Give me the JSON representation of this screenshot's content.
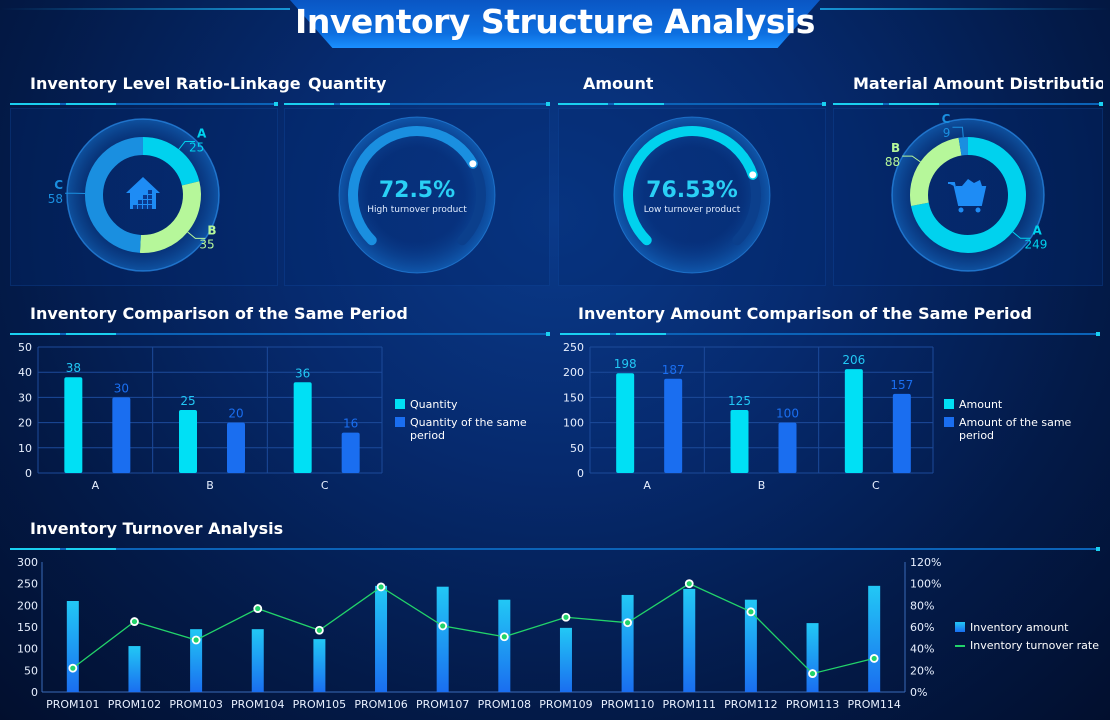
{
  "header": {
    "title": "Inventory Structure Analysis"
  },
  "sections": {
    "level_ratio": {
      "title": "Inventory Level Ratio-Linkage",
      "icon": "warehouse-icon",
      "slices": [
        {
          "label": "A",
          "value": 25,
          "color": "#00d2ee"
        },
        {
          "label": "B",
          "value": 35,
          "color": "#b6f79a"
        },
        {
          "label": "C",
          "value": 58,
          "color": "#1a8fe0"
        }
      ]
    },
    "quantity": {
      "title": "Quantity",
      "percent": 72.5,
      "percent_label": "72.5%",
      "caption": "High turnover product",
      "color": "#1a8fe0"
    },
    "amount": {
      "title": "Amount",
      "percent": 76.53,
      "percent_label": "76.53%",
      "caption": "Low turnover product",
      "color": "#00d2ee"
    },
    "material": {
      "title": "Material Amount Distribution-I",
      "icon": "shopping-cart-icon",
      "slices": [
        {
          "label": "A",
          "value": 249,
          "color": "#00d2ee"
        },
        {
          "label": "B",
          "value": 88,
          "color": "#b6f79a"
        },
        {
          "label": "C",
          "value": 9,
          "color": "#1a8fe0"
        }
      ]
    },
    "qty_compare": {
      "title": "Inventory Comparison of the Same Period"
    },
    "amt_compare": {
      "title": "Inventory Amount Comparison of the Same Period"
    },
    "turnover": {
      "title": "Inventory Turnover Analysis"
    }
  },
  "chart_data": [
    {
      "type": "bar",
      "categories": [
        "A",
        "B",
        "C"
      ],
      "ylim": [
        0,
        50
      ],
      "yticks": [
        0,
        10,
        20,
        30,
        40,
        50
      ],
      "series": [
        {
          "name": "Quantity",
          "values": [
            38,
            25,
            36
          ],
          "color": "#00e0f5"
        },
        {
          "name": "Quantity of the same period",
          "values": [
            30,
            20,
            16
          ],
          "color": "#1a6ef0"
        }
      ],
      "legend": "right"
    },
    {
      "type": "bar",
      "categories": [
        "A",
        "B",
        "C"
      ],
      "ylim": [
        0,
        250
      ],
      "yticks": [
        0,
        50,
        100,
        150,
        200,
        250
      ],
      "series": [
        {
          "name": "Amount",
          "values": [
            198,
            125,
            206
          ],
          "color": "#00e0f5"
        },
        {
          "name": "Amount of the same period",
          "values": [
            187,
            100,
            157
          ],
          "color": "#1a6ef0"
        }
      ],
      "legend": "right"
    },
    {
      "type": "bar+line",
      "categories": [
        "PROM101",
        "PROM102",
        "PROM103",
        "PROM104",
        "PROM105",
        "PROM106",
        "PROM107",
        "PROM108",
        "PROM109",
        "PROM110",
        "PROM111",
        "PROM112",
        "PROM113",
        "PROM114"
      ],
      "ylim": [
        0,
        300
      ],
      "yticks": [
        0,
        50,
        100,
        150,
        200,
        250,
        300
      ],
      "y2lim": [
        0,
        120
      ],
      "y2ticks": [
        "0%",
        "20%",
        "40%",
        "60%",
        "80%",
        "100%",
        "120%"
      ],
      "series": [
        {
          "name": "Inventory amount",
          "type": "bar",
          "values": [
            210,
            106,
            145,
            145,
            122,
            245,
            243,
            213,
            148,
            224,
            238,
            213,
            159,
            245
          ],
          "color": "#1a9cf5"
        },
        {
          "name": "Inventory turnover rate",
          "type": "line",
          "axis": "right",
          "values": [
            22,
            65,
            48,
            77,
            57,
            97,
            61,
            51,
            69,
            64,
            100,
            74,
            17,
            31
          ],
          "color": "#22d46a"
        }
      ],
      "legend": "right"
    }
  ]
}
